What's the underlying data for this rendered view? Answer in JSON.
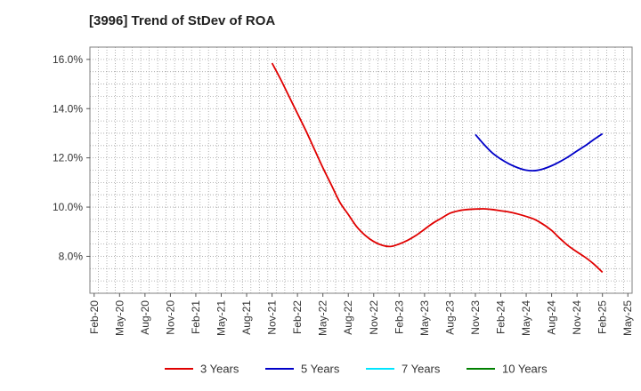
{
  "chart_data": {
    "type": "line",
    "title": "[3996]  Trend of StDev of ROA",
    "xlabel": "",
    "ylabel": "",
    "x_tick_labels": [
      "Feb-20",
      "May-20",
      "Aug-20",
      "Nov-20",
      "Feb-21",
      "May-21",
      "Aug-21",
      "Nov-21",
      "Feb-22",
      "May-22",
      "Aug-22",
      "Nov-22",
      "Feb-23",
      "May-23",
      "Aug-23",
      "Nov-23",
      "Feb-24",
      "May-24",
      "Aug-24",
      "Nov-24",
      "Feb-25",
      "May-25"
    ],
    "y_tick_labels": [
      "8.0%",
      "10.0%",
      "12.0%",
      "14.0%",
      "16.0%"
    ],
    "y_ticks": [
      8,
      10,
      12,
      14,
      16
    ],
    "ylim": [
      6.5,
      16.5
    ],
    "y_unit": "%",
    "grid": true,
    "legend_position": "bottom",
    "series": [
      {
        "name": "3 Years",
        "color": "#e00000",
        "x": [
          "Nov-21",
          "Dec-21",
          "Jan-22",
          "Feb-22",
          "Mar-22",
          "Apr-22",
          "May-22",
          "Jun-22",
          "Jul-22",
          "Aug-22",
          "Sep-22",
          "Oct-22",
          "Nov-22",
          "Dec-22",
          "Jan-23",
          "Feb-23",
          "Mar-23",
          "Apr-23",
          "May-23",
          "Jun-23",
          "Jul-23",
          "Aug-23",
          "Sep-23",
          "Oct-23",
          "Nov-23",
          "Dec-23",
          "Jan-24",
          "Feb-24",
          "Mar-24",
          "Apr-24",
          "May-24",
          "Jun-24",
          "Jul-24",
          "Aug-24",
          "Sep-24",
          "Oct-24",
          "Nov-24",
          "Dec-24",
          "Jan-25",
          "Feb-25"
        ],
        "values": [
          15.85,
          15.2,
          14.5,
          13.8,
          13.1,
          12.35,
          11.6,
          10.9,
          10.2,
          9.7,
          9.2,
          8.85,
          8.6,
          8.45,
          8.4,
          8.5,
          8.65,
          8.85,
          9.1,
          9.35,
          9.55,
          9.75,
          9.85,
          9.9,
          9.92,
          9.93,
          9.9,
          9.85,
          9.8,
          9.72,
          9.62,
          9.5,
          9.3,
          9.05,
          8.72,
          8.42,
          8.18,
          7.95,
          7.68,
          7.35
        ]
      },
      {
        "name": "5 Years",
        "color": "#0000c8",
        "x": [
          "Nov-23",
          "Dec-23",
          "Jan-24",
          "Feb-24",
          "Mar-24",
          "Apr-24",
          "May-24",
          "Jun-24",
          "Jul-24",
          "Aug-24",
          "Sep-24",
          "Oct-24",
          "Nov-24",
          "Dec-24",
          "Jan-25",
          "Feb-25"
        ],
        "values": [
          12.95,
          12.55,
          12.2,
          11.95,
          11.75,
          11.6,
          11.5,
          11.48,
          11.55,
          11.68,
          11.85,
          12.05,
          12.28,
          12.5,
          12.75,
          12.98
        ]
      },
      {
        "name": "7 Years",
        "color": "#00e5ff",
        "x": [],
        "values": []
      },
      {
        "name": "10 Years",
        "color": "#008000",
        "x": [],
        "values": []
      }
    ]
  }
}
